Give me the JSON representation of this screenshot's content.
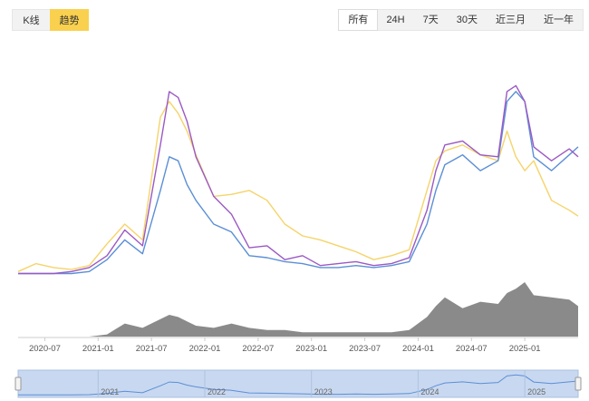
{
  "view_toggle": {
    "kline_label": "K线",
    "trend_label": "趋势",
    "active": "trend"
  },
  "range_tabs": [
    {
      "label": "所有",
      "active": true
    },
    {
      "label": "24H",
      "active": false
    },
    {
      "label": "7天",
      "active": false
    },
    {
      "label": "30天",
      "active": false
    },
    {
      "label": "近三月",
      "active": false
    },
    {
      "label": "近一年",
      "active": false
    }
  ],
  "colors": {
    "blue": "#5b8fd6",
    "purple": "#9b59c4",
    "yellow": "#f5d469",
    "volume": "#8a8a8a",
    "active_tab": "#f9d14f"
  },
  "chart_data": {
    "type": "line",
    "x_tick_labels": [
      "2020-07",
      "2021-01",
      "2021-07",
      "2022-01",
      "2022-07",
      "2023-01",
      "2023-07",
      "2024-01",
      "2024-07",
      "2025-01"
    ],
    "navigator_labels": [
      "2021",
      "2022",
      "2023",
      "2024",
      "2025"
    ],
    "x": [
      "2020-04",
      "2020-06",
      "2020-08",
      "2020-10",
      "2020-12",
      "2021-02",
      "2021-04",
      "2021-06",
      "2021-08",
      "2021-09",
      "2021-10",
      "2021-11",
      "2021-12",
      "2022-02",
      "2022-04",
      "2022-06",
      "2022-08",
      "2022-10",
      "2022-12",
      "2023-02",
      "2023-04",
      "2023-06",
      "2023-08",
      "2023-10",
      "2023-12",
      "2024-02",
      "2024-03",
      "2024-04",
      "2024-06",
      "2024-08",
      "2024-10",
      "2024-11",
      "2024-12",
      "2025-01",
      "2025-02",
      "2025-04",
      "2025-06",
      "2025-07"
    ],
    "series": [
      {
        "color": "blue",
        "values": [
          3,
          3,
          3,
          3,
          4,
          10,
          20,
          13,
          45,
          62,
          60,
          48,
          40,
          28,
          24,
          12,
          11,
          9,
          8,
          6,
          6,
          7,
          6,
          7,
          9,
          28,
          45,
          58,
          63,
          55,
          60,
          90,
          95,
          90,
          62,
          55,
          63,
          67
        ]
      },
      {
        "color": "purple",
        "values": [
          3,
          3,
          3,
          4,
          6,
          12,
          25,
          17,
          68,
          95,
          92,
          80,
          62,
          42,
          33,
          16,
          17,
          10,
          12,
          7,
          8,
          9,
          7,
          8,
          11,
          35,
          55,
          68,
          70,
          63,
          62,
          95,
          98,
          90,
          67,
          60,
          66,
          62
        ]
      },
      {
        "color": "yellow",
        "values": [
          4,
          8,
          6,
          5,
          7,
          18,
          28,
          20,
          82,
          90,
          84,
          75,
          63,
          42,
          43,
          45,
          40,
          28,
          22,
          20,
          17,
          14,
          10,
          12,
          15,
          45,
          60,
          65,
          68,
          63,
          60,
          75,
          62,
          55,
          60,
          40,
          35,
          32
        ]
      }
    ],
    "volume": [
      0,
      0,
      0,
      0,
      0,
      1,
      6,
      4,
      8,
      10,
      9,
      7,
      5,
      4,
      6,
      4,
      3,
      3,
      2,
      2,
      2,
      2,
      2,
      2,
      3,
      9,
      14,
      18,
      13,
      16,
      15,
      20,
      22,
      25,
      19,
      18,
      17,
      14
    ],
    "grid": false,
    "legend": "none"
  }
}
